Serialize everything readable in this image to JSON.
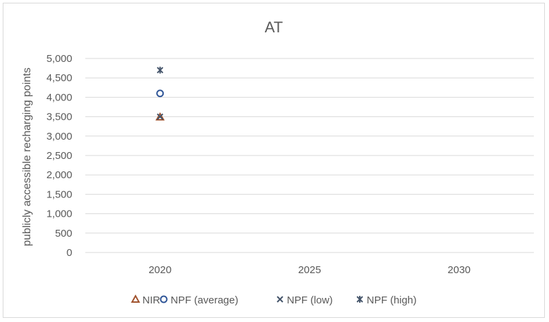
{
  "chart_data": {
    "type": "scatter",
    "title": "AT",
    "xlabel": "",
    "ylabel": "publicly accessible recharging points",
    "categories": [
      "2020",
      "2025",
      "2030"
    ],
    "y_ticks": [
      "0",
      "500",
      "1,000",
      "1,500",
      "2,000",
      "2,500",
      "3,000",
      "3,500",
      "4,000",
      "4,500",
      "5,000"
    ],
    "ylim": [
      0,
      5000
    ],
    "grid": true,
    "legend_position": "bottom",
    "series": [
      {
        "name": "NIR",
        "marker": "triangle",
        "color": "#a0522d",
        "points": [
          {
            "x": "2020",
            "y": 3490
          }
        ]
      },
      {
        "name": "NPF (average)",
        "marker": "circle",
        "color": "#2f5597",
        "points": [
          {
            "x": "2020",
            "y": 4100
          }
        ]
      },
      {
        "name": "NPF (low)",
        "marker": "x",
        "color": "#44546a",
        "points": [
          {
            "x": "2020",
            "y": 3500
          }
        ]
      },
      {
        "name": "NPF (high)",
        "marker": "star",
        "color": "#44546a",
        "points": [
          {
            "x": "2020",
            "y": 4700
          }
        ]
      }
    ]
  }
}
